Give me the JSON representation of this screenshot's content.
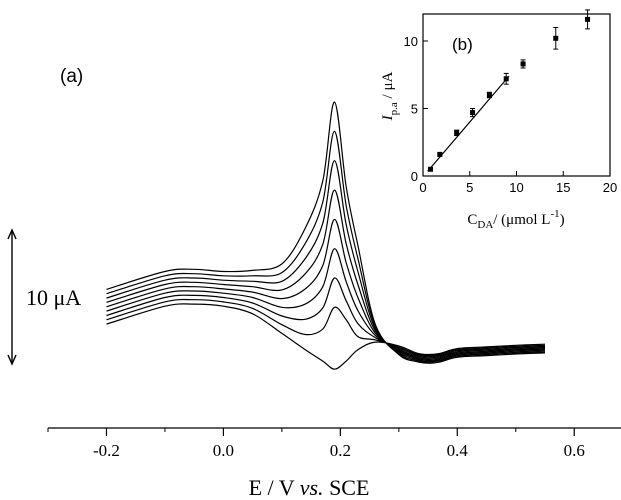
{
  "chart_data": [
    {
      "panel": "a",
      "panel_label": "(a)",
      "type": "line",
      "xlabel_main": "E / V ",
      "xlabel_italic": "vs.",
      "xlabel_tail": " SCE",
      "xlim": [
        -0.3,
        0.68
      ],
      "xticks": [
        -0.2,
        0.0,
        0.2,
        0.4,
        0.6
      ],
      "xtick_labels": [
        "-0.2",
        "0.0",
        "0.2",
        "0.4",
        "0.6"
      ],
      "scale_bar_label": "10 μA",
      "scale_bar_value_uA": 10,
      "y_units": "μA (relative, offset curves)",
      "series": [
        {
          "x": [
            -0.2,
            -0.1,
            -0.05,
            0.0,
            0.05,
            0.1,
            0.14,
            0.17,
            0.19,
            0.21,
            0.23,
            0.26,
            0.3,
            0.33,
            0.35,
            0.37,
            0.4,
            0.45,
            0.5,
            0.55
          ],
          "y": [
            2.5,
            5.8,
            6.2,
            5.8,
            4.4,
            0.8,
            -2.2,
            -4.3,
            -5.8,
            -4.3,
            -2.2,
            -0.8,
            -1.5,
            -2.8,
            -3.1,
            -2.9,
            -2.0,
            -1.7,
            -1.4,
            -1.2
          ]
        },
        {
          "x": [
            -0.2,
            -0.1,
            -0.05,
            0.0,
            0.05,
            0.1,
            0.14,
            0.17,
            0.19,
            0.21,
            0.23,
            0.26,
            0.3,
            0.33,
            0.35,
            0.37,
            0.4,
            0.45,
            0.5,
            0.55
          ],
          "y": [
            3.3,
            6.6,
            7.0,
            6.6,
            5.4,
            2.4,
            0.6,
            1.6,
            5.6,
            3.3,
            0.2,
            -0.4,
            -1.7,
            -3.0,
            -3.3,
            -3.1,
            -2.2,
            -1.9,
            -1.6,
            -1.4
          ]
        },
        {
          "x": [
            -0.2,
            -0.1,
            -0.05,
            0.0,
            0.05,
            0.1,
            0.14,
            0.17,
            0.19,
            0.21,
            0.23,
            0.26,
            0.3,
            0.33,
            0.35,
            0.37,
            0.4,
            0.45,
            0.5,
            0.55
          ],
          "y": [
            4.1,
            7.4,
            7.8,
            7.4,
            6.4,
            4.0,
            3.4,
            5.5,
            11.0,
            6.8,
            2.6,
            0.0,
            -1.9,
            -3.2,
            -3.5,
            -3.3,
            -2.4,
            -2.1,
            -1.8,
            -1.6
          ]
        },
        {
          "x": [
            -0.2,
            -0.1,
            -0.05,
            0.0,
            0.05,
            0.1,
            0.14,
            0.17,
            0.19,
            0.21,
            0.23,
            0.26,
            0.3,
            0.33,
            0.35,
            0.37,
            0.4,
            0.45,
            0.5,
            0.55
          ],
          "y": [
            4.9,
            8.2,
            8.6,
            8.2,
            7.4,
            5.6,
            6.2,
            9.4,
            16.4,
            10.3,
            5.0,
            0.4,
            -2.1,
            -3.4,
            -3.7,
            -3.5,
            -2.6,
            -2.3,
            -2.0,
            -1.8
          ]
        },
        {
          "x": [
            -0.2,
            -0.1,
            -0.05,
            0.0,
            0.05,
            0.1,
            0.14,
            0.17,
            0.19,
            0.21,
            0.23,
            0.26,
            0.3,
            0.33,
            0.35,
            0.37,
            0.4,
            0.45,
            0.5,
            0.55
          ],
          "y": [
            5.7,
            9.0,
            9.4,
            9.0,
            8.4,
            7.2,
            9.0,
            13.3,
            21.8,
            13.8,
            7.4,
            0.8,
            -2.3,
            -3.6,
            -3.9,
            -3.7,
            -2.8,
            -2.5,
            -2.2,
            -2.0
          ]
        },
        {
          "x": [
            -0.2,
            -0.1,
            -0.05,
            0.0,
            0.05,
            0.1,
            0.14,
            0.17,
            0.19,
            0.21,
            0.23,
            0.26,
            0.3,
            0.33,
            0.35,
            0.37,
            0.4,
            0.45,
            0.5,
            0.55
          ],
          "y": [
            6.5,
            9.8,
            10.2,
            9.8,
            9.4,
            8.8,
            11.8,
            17.2,
            27.2,
            17.3,
            9.8,
            1.2,
            -2.5,
            -3.8,
            -4.1,
            -3.9,
            -3.0,
            -2.7,
            -2.4,
            -2.2
          ]
        },
        {
          "x": [
            -0.2,
            -0.1,
            -0.05,
            0.0,
            0.05,
            0.1,
            0.14,
            0.17,
            0.19,
            0.21,
            0.23,
            0.26,
            0.3,
            0.33,
            0.35,
            0.37,
            0.4,
            0.45,
            0.5,
            0.55
          ],
          "y": [
            7.3,
            10.6,
            11.0,
            10.6,
            10.4,
            10.4,
            14.6,
            21.1,
            32.6,
            20.8,
            12.2,
            1.6,
            -2.7,
            -4.0,
            -4.3,
            -4.1,
            -3.2,
            -2.9,
            -2.6,
            -2.4
          ]
        },
        {
          "x": [
            -0.2,
            -0.1,
            -0.05,
            0.0,
            0.05,
            0.1,
            0.14,
            0.17,
            0.19,
            0.21,
            0.23,
            0.26,
            0.3,
            0.33,
            0.35,
            0.37,
            0.4,
            0.45,
            0.5,
            0.55
          ],
          "y": [
            8.1,
            11.4,
            11.8,
            11.4,
            11.4,
            12.0,
            17.4,
            25.0,
            38.0,
            24.3,
            14.6,
            2.0,
            -2.9,
            -4.2,
            -4.5,
            -4.3,
            -3.4,
            -3.1,
            -2.8,
            -2.6
          ]
        },
        {
          "x": [
            -0.2,
            -0.1,
            -0.05,
            0.0,
            0.05,
            0.1,
            0.14,
            0.17,
            0.19,
            0.21,
            0.23,
            0.26,
            0.3,
            0.33,
            0.35,
            0.37,
            0.4,
            0.45,
            0.5,
            0.55
          ],
          "y": [
            8.9,
            12.2,
            12.6,
            12.2,
            12.4,
            13.6,
            20.2,
            28.9,
            43.4,
            27.8,
            17.0,
            2.4,
            -3.1,
            -4.4,
            -4.7,
            -4.5,
            -3.6,
            -3.3,
            -3.0,
            -2.8
          ]
        }
      ],
      "ylim": [
        -10,
        46
      ]
    },
    {
      "panel": "b",
      "panel_label": "(b)",
      "type": "scatter",
      "xlabel_base": "C",
      "xlabel_sub": "DA",
      "xlabel_unit": "/ (μmol L",
      "xlabel_sup": "-1",
      "xlabel_close": ")",
      "ylabel_base": "I",
      "ylabel_sub": "p.a",
      "ylabel_unit": " / μA",
      "xlim": [
        0,
        20
      ],
      "ylim": [
        0,
        12
      ],
      "xticks": [
        0,
        5,
        10,
        15,
        20
      ],
      "yticks": [
        0,
        5,
        10
      ],
      "points": [
        {
          "x": 0.8,
          "y": 0.5,
          "err": 0.1
        },
        {
          "x": 1.8,
          "y": 1.6,
          "err": 0.1
        },
        {
          "x": 3.6,
          "y": 3.2,
          "err": 0.2
        },
        {
          "x": 5.3,
          "y": 4.7,
          "err": 0.3
        },
        {
          "x": 7.1,
          "y": 6.0,
          "err": 0.2
        },
        {
          "x": 8.9,
          "y": 7.2,
          "err": 0.4
        },
        {
          "x": 10.7,
          "y": 8.3,
          "err": 0.3
        },
        {
          "x": 14.2,
          "y": 10.2,
          "err": 0.8
        },
        {
          "x": 17.6,
          "y": 11.6,
          "err": 0.7
        }
      ],
      "fit_line": {
        "x": [
          0.5,
          9.2
        ],
        "y": [
          0.35,
          7.4
        ]
      }
    }
  ]
}
